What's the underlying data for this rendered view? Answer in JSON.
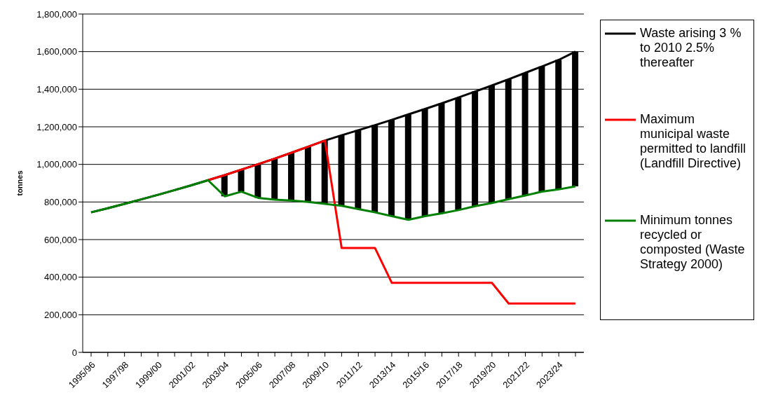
{
  "chart_data": {
    "type": "line",
    "ylabel": "tonnes",
    "categories": [
      "1995/96",
      null,
      "1997/98",
      null,
      "1999/00",
      null,
      "2001/02",
      null,
      "2003/04",
      null,
      "2005/06",
      null,
      "2007/08",
      null,
      "2009/10",
      null,
      "2011/12",
      null,
      "2013/14",
      null,
      "2015/16",
      null,
      "2017/18",
      null,
      "2019/20",
      null,
      "2021/22",
      null,
      "2023/24",
      null
    ],
    "series": [
      {
        "type": "bar",
        "color": "#000000",
        "base": [
          null,
          null,
          null,
          null,
          null,
          null,
          null,
          null,
          830000,
          855000,
          822000,
          812000,
          808000,
          800000,
          790000,
          780000,
          762000,
          745000,
          725000,
          705000,
          725000,
          740000,
          757000,
          778000,
          795000,
          815000,
          835000,
          855000,
          867000,
          883000
        ],
        "values": [
          null,
          null,
          null,
          null,
          null,
          null,
          null,
          null,
          113000,
          117000,
          179000,
          219000,
          254000,
          294000,
          337000,
          375000,
          420000,
          464000,
          512000,
          561000,
          570000,
          585000,
          599000,
          610000,
          625000,
          638000,
          652000,
          666000,
          689000,
          717000
        ]
      },
      {
        "name": "Waste arising 3 % to 2010 2.5% thereafter",
        "color": "#000000",
        "values": [
          745000,
          767000,
          790000,
          814000,
          838000,
          863000,
          889000,
          916000,
          943000,
          972000,
          1001000,
          1031000,
          1062000,
          1094000,
          1127000,
          1155000,
          1182000,
          1209000,
          1237000,
          1266000,
          1295000,
          1325000,
          1356000,
          1388000,
          1420000,
          1453000,
          1487000,
          1521000,
          1556000,
          1600000
        ]
      },
      {
        "name": "Maximum municipal waste permitted to landfill (Landfill Directive)",
        "color": "#ff0000",
        "values": [
          null,
          null,
          null,
          null,
          null,
          null,
          null,
          916000,
          943000,
          972000,
          1001000,
          1031000,
          1062000,
          1094000,
          1127000,
          555000,
          555000,
          555000,
          370000,
          370000,
          370000,
          370000,
          370000,
          370000,
          370000,
          260000,
          260000,
          260000,
          260000,
          260000
        ]
      },
      {
        "name": "Minimum tonnes recycled or composted (Waste Strategy 2000)",
        "color": "#008000",
        "values": [
          745000,
          767000,
          790000,
          814000,
          838000,
          863000,
          889000,
          916000,
          830000,
          855000,
          822000,
          812000,
          808000,
          800000,
          790000,
          780000,
          762000,
          745000,
          725000,
          705000,
          725000,
          740000,
          757000,
          778000,
          795000,
          815000,
          835000,
          855000,
          867000,
          883000
        ]
      }
    ],
    "ylim": [
      0,
      1800000
    ],
    "yticks": [
      0,
      {
        "value": 200000,
        "label": "200,000"
      },
      {
        "value": 400000,
        "label": "400,000"
      },
      {
        "value": 600000,
        "label": "600,000"
      },
      {
        "value": 800000,
        "label": "800,000"
      },
      {
        "value": 1000000,
        "label": "1,000,000"
      },
      {
        "value": 1200000,
        "label": "1,200,000"
      },
      {
        "value": 1400000,
        "label": "1,400,000"
      },
      {
        "value": 1600000,
        "label": "1,600,000"
      },
      {
        "value": 1800000,
        "label": "1,800,000"
      }
    ],
    "grid": "y",
    "legend": "right",
    "marker": "none",
    "line_style": "solid"
  }
}
